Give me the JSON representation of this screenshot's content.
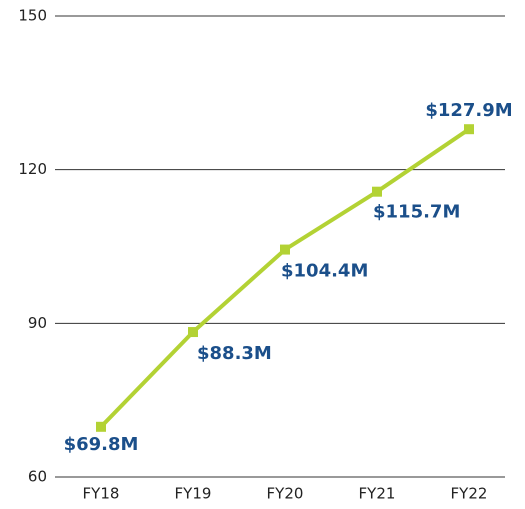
{
  "chart_data": {
    "type": "line",
    "categories": [
      "FY18",
      "FY19",
      "FY20",
      "FY21",
      "FY22"
    ],
    "series": [
      {
        "color": "#b3d234",
        "values": [
          69.8,
          88.3,
          104.4,
          115.7,
          127.9
        ],
        "value_labels": [
          "$69.8M",
          "$88.3M",
          "$104.4M",
          "$115.7M",
          "$127.9M"
        ]
      }
    ],
    "ylim": [
      60,
      150
    ],
    "yticks": [
      60,
      90,
      120,
      150
    ],
    "grid": true
  }
}
